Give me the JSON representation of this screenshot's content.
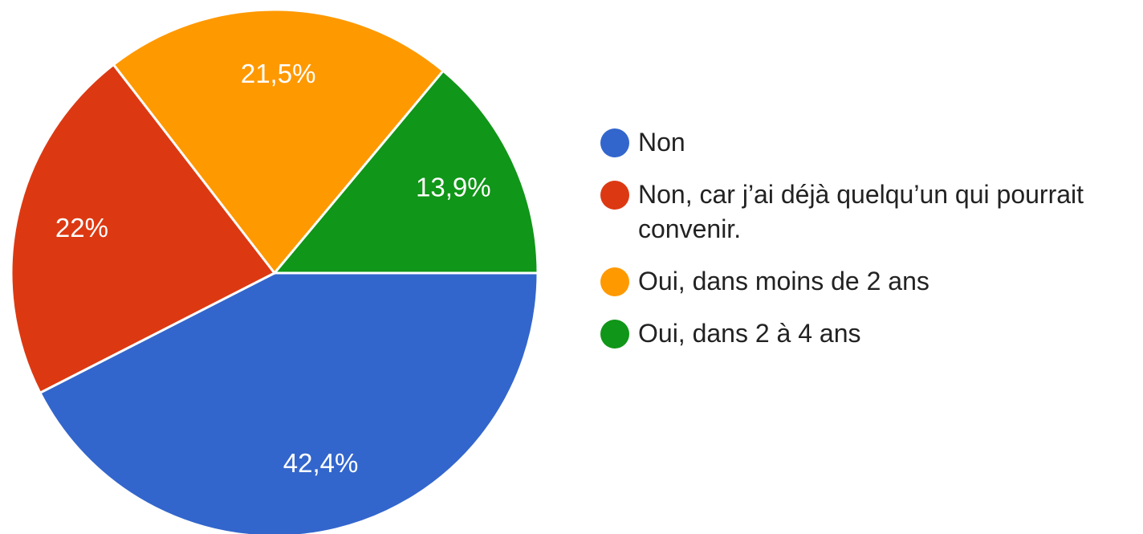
{
  "chart_data": {
    "type": "pie",
    "categories": [
      "Non",
      "Non, car j’ai déjà quelqu’un qui pourrait convenir.",
      "Oui, dans moins de 2 ans",
      "Oui, dans 2 à 4 ans"
    ],
    "values": [
      42.4,
      22,
      21.5,
      13.9
    ],
    "value_labels": [
      "42,4%",
      "22%",
      "21,5%",
      "13,9%"
    ],
    "colors": [
      "#3366cc",
      "#dc3912",
      "#ff9900",
      "#109618"
    ]
  }
}
